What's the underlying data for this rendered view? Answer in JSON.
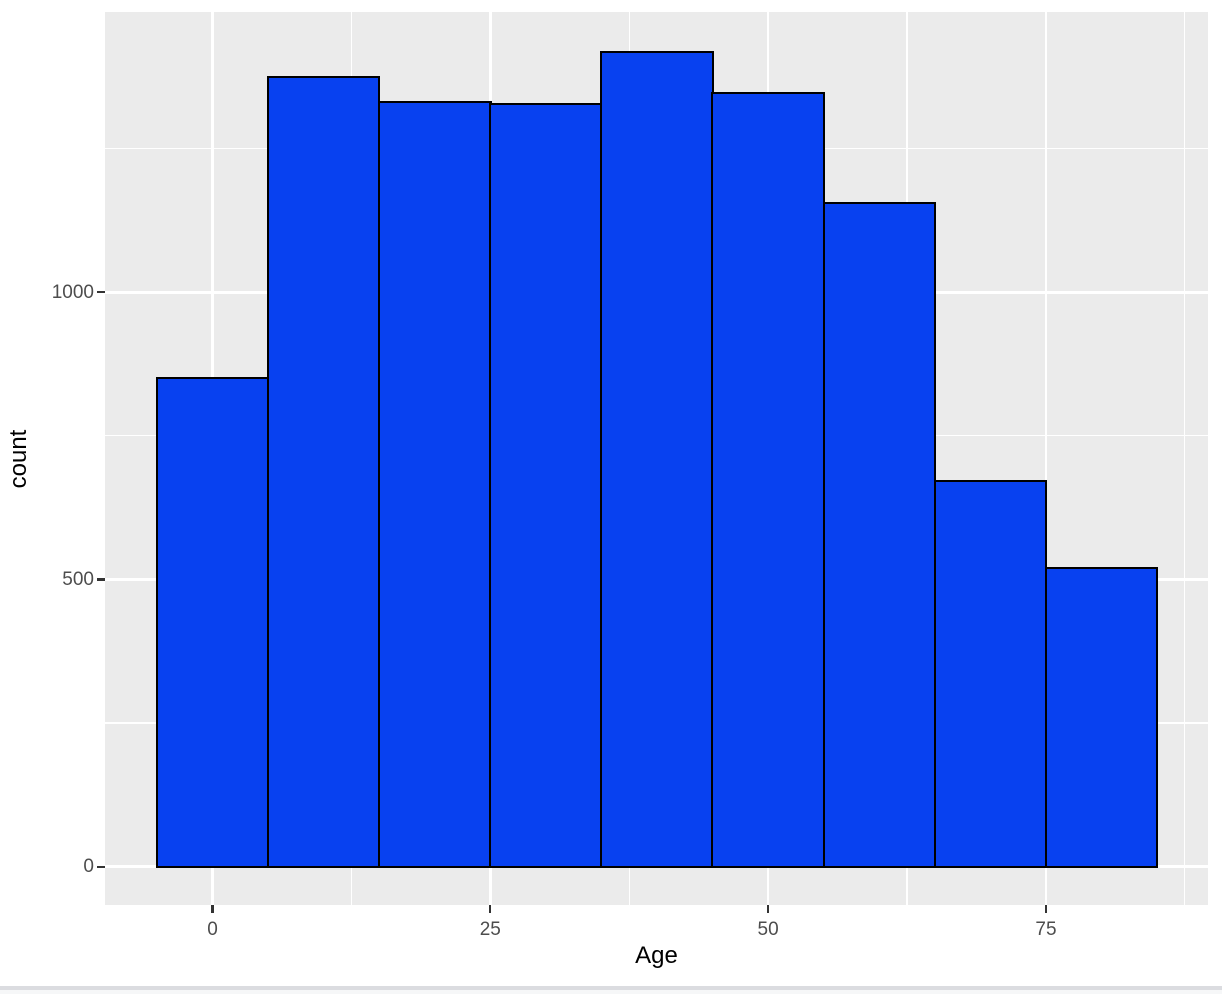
{
  "chart_data": {
    "type": "bar",
    "subtype": "histogram",
    "title": "",
    "xlabel": "Age",
    "ylabel": "count",
    "bin_edges": [
      -5,
      5,
      15,
      25,
      35,
      45,
      55,
      65,
      75,
      85
    ],
    "counts": [
      851,
      1375,
      1331,
      1327,
      1418,
      1346,
      1156,
      672,
      519
    ],
    "x_major_ticks": [
      0,
      25,
      50,
      75
    ],
    "x_major_tick_labels": [
      "0",
      "25",
      "50",
      "75"
    ],
    "x_minor_ticks": [
      12.5,
      37.5,
      62.5,
      87.5
    ],
    "y_major_ticks": [
      0,
      500,
      1000
    ],
    "y_major_tick_labels": [
      "0",
      "500",
      "1000"
    ],
    "y_minor_ticks": [
      250,
      750,
      1250
    ],
    "xlim": [
      -9.67,
      89.58
    ],
    "ylim": [
      -66.8,
      1488
    ],
    "grid": true,
    "legend": "none",
    "colors": {
      "bar_fill": "#0841F0",
      "bar_stroke": "#000000",
      "panel_background": "#EBEBEB",
      "gridline": "#FFFFFF",
      "tick_label": "#4D4D4D",
      "tick_mark": "#333333",
      "axis_title": "#000000",
      "page_background": "#FFFFFF",
      "divider_line": "#DBDCE0",
      "divider_fill": "#F6F7F8"
    }
  }
}
